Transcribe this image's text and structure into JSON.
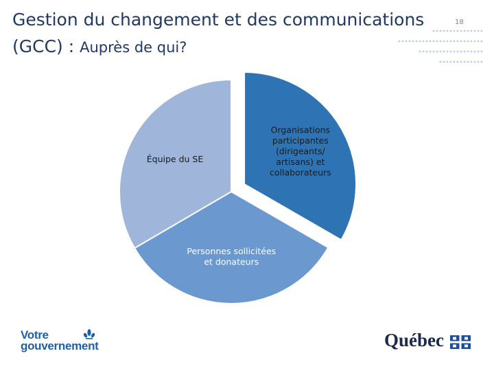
{
  "slide": {
    "title_main": "Gestion du changement et des communications",
    "title_line2_prefix": "(GCC) : ",
    "title_line2_rest": "Auprès de qui?",
    "page_number": "18"
  },
  "colors": {
    "title": "#1f3864",
    "slice_1": "#2e74b5",
    "slice_2": "#6a98cf",
    "slice_3": "#9fb6da",
    "logo_blue": "#1f5fa8",
    "quebec_navy": "#1a2a4a",
    "dots": "#b9cde6"
  },
  "chart_data": {
    "type": "pie",
    "title": "",
    "slices": [
      {
        "label": "Organisations participantes (dirigeants/ artisans) et collaborateurs",
        "value": 33.3,
        "exploded": true
      },
      {
        "label": "Personnes sollicitées et donateurs",
        "value": 33.3,
        "exploded": false
      },
      {
        "label": "Équipe du SE",
        "value": 33.4,
        "exploded": false
      }
    ]
  },
  "footer": {
    "logo_left_line1": "Votre",
    "logo_left_line2": "gouvernement",
    "logo_right": "Québec",
    "logo_left_icon": "fleur-de-lis-icon",
    "logo_right_icon": "quebec-flag-icon"
  }
}
